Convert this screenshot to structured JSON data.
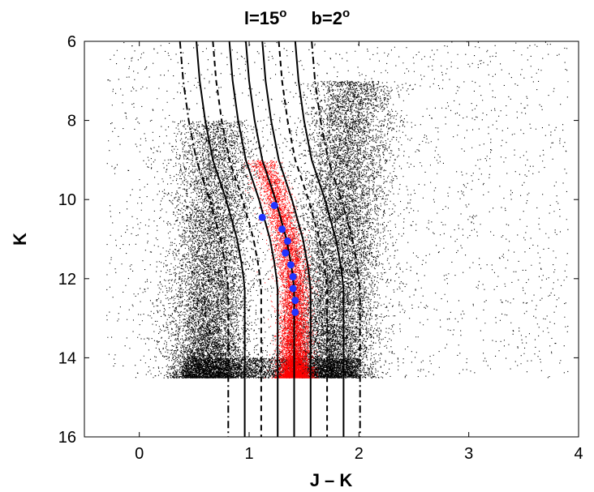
{
  "chart_data": {
    "type": "scatter",
    "title_parts": {
      "l_base": "l=15",
      "l_sup": "o",
      "b_base": "b=2",
      "b_sup": "o"
    },
    "xlabel": "J – K",
    "ylabel": "K",
    "xlim": [
      -0.5,
      4
    ],
    "ylim": [
      16,
      6
    ],
    "y_inverted": true,
    "grid": false,
    "x_ticks": [
      "0",
      "1",
      "2",
      "3",
      "4"
    ],
    "y_ticks": [
      "6",
      "8",
      "10",
      "12",
      "14",
      "16"
    ],
    "background_field": {
      "description_kind": "dense black point cloud",
      "color": "#000000",
      "k_max": 14.5
    },
    "selected_region": {
      "color": "#ff0000",
      "jk_range": [
        1.22,
        1.6
      ],
      "k_range": [
        9.0,
        14.5
      ]
    },
    "series": [
      {
        "name": "",
        "kind": "points",
        "color": "#2233ff",
        "x": [
          1.23,
          1.12,
          1.3,
          1.35,
          1.33,
          1.38,
          1.4,
          1.4,
          1.42,
          1.42
        ],
        "y": [
          10.15,
          10.45,
          10.75,
          11.05,
          11.35,
          11.65,
          11.95,
          12.25,
          12.55,
          12.85
        ]
      }
    ],
    "curves": {
      "center_solid": {
        "k": [
          6.0,
          7.0,
          8.0,
          9.0,
          10.0,
          11.0,
          11.6,
          12.0,
          12.3,
          12.5,
          13.0,
          16.0
        ],
        "jk": [
          0.97,
          1.0,
          1.05,
          1.12,
          1.24,
          1.34,
          1.38,
          1.4,
          1.41,
          1.41,
          1.41,
          1.41
        ]
      },
      "offsets": {
        "solid_inner": 0.15,
        "dashed": 0.3,
        "solid_outer": 0.45,
        "dashdot": 0.6
      },
      "outer_start_k": 12.5,
      "outer_start_offset": 0.3
    }
  }
}
